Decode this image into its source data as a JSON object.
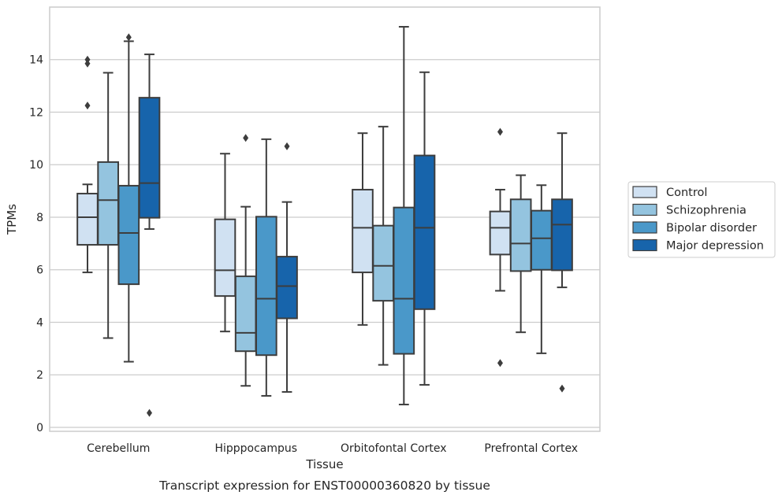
{
  "chart_data": {
    "type": "box",
    "caption": "Transcript expression for ENST00000360820 by tissue",
    "xlabel": "Tissue",
    "ylabel": "TPMs",
    "ylim": [
      -0.15,
      16
    ],
    "yticks": [
      0,
      2,
      4,
      6,
      8,
      10,
      12,
      14
    ],
    "grid": true,
    "legend_position": "right",
    "categories": [
      "Cerebellum",
      "Hipppocampus",
      "Orbitofontal Cortex",
      "Prefrontal Cortex"
    ],
    "series": [
      {
        "name": "Control",
        "color": "#d0e1f2",
        "boxes": [
          {
            "whislo": 5.9,
            "q1": 6.95,
            "med": 8.0,
            "q3": 8.9,
            "whishi": 9.25,
            "fliers": [
              12.25,
              13.85,
              14.0
            ]
          },
          {
            "whislo": 3.65,
            "q1": 5.0,
            "med": 5.98,
            "q3": 7.92,
            "whishi": 10.42,
            "fliers": []
          },
          {
            "whislo": 3.9,
            "q1": 5.9,
            "med": 7.6,
            "q3": 9.05,
            "whishi": 11.2,
            "fliers": []
          },
          {
            "whislo": 5.2,
            "q1": 6.58,
            "med": 7.6,
            "q3": 8.22,
            "whishi": 9.05,
            "fliers": [
              2.45,
              11.25
            ]
          }
        ]
      },
      {
        "name": "Schizophrenia",
        "color": "#94c4df",
        "boxes": [
          {
            "whislo": 3.4,
            "q1": 6.95,
            "med": 8.65,
            "q3": 10.1,
            "whishi": 13.5,
            "fliers": []
          },
          {
            "whislo": 1.58,
            "q1": 2.9,
            "med": 3.6,
            "q3": 5.75,
            "whishi": 8.4,
            "fliers": [
              11.02
            ]
          },
          {
            "whislo": 2.38,
            "q1": 4.82,
            "med": 6.15,
            "q3": 7.68,
            "whishi": 11.45,
            "fliers": []
          },
          {
            "whislo": 3.62,
            "q1": 5.95,
            "med": 7.0,
            "q3": 8.68,
            "whishi": 9.6,
            "fliers": []
          }
        ]
      },
      {
        "name": "Bipolar disorder",
        "color": "#4a98c9",
        "boxes": [
          {
            "whislo": 2.5,
            "q1": 5.45,
            "med": 7.4,
            "q3": 9.2,
            "whishi": 14.7,
            "fliers": [
              14.85
            ]
          },
          {
            "whislo": 1.2,
            "q1": 2.75,
            "med": 4.9,
            "q3": 8.02,
            "whishi": 10.97,
            "fliers": []
          },
          {
            "whislo": 0.87,
            "q1": 2.8,
            "med": 4.9,
            "q3": 8.37,
            "whishi": 15.25,
            "fliers": []
          },
          {
            "whislo": 2.82,
            "q1": 6.0,
            "med": 7.2,
            "q3": 8.25,
            "whishi": 9.22,
            "fliers": []
          }
        ]
      },
      {
        "name": "Major depression",
        "color": "#1764ab",
        "boxes": [
          {
            "whislo": 7.55,
            "q1": 7.98,
            "med": 9.3,
            "q3": 12.55,
            "whishi": 14.2,
            "fliers": [
              0.55
            ]
          },
          {
            "whislo": 1.35,
            "q1": 4.15,
            "med": 5.38,
            "q3": 6.5,
            "whishi": 8.58,
            "fliers": [
              10.7
            ]
          },
          {
            "whislo": 1.62,
            "q1": 4.5,
            "med": 7.6,
            "q3": 10.35,
            "whishi": 13.52,
            "fliers": []
          },
          {
            "whislo": 5.33,
            "q1": 5.98,
            "med": 7.72,
            "q3": 8.68,
            "whishi": 11.2,
            "fliers": [
              1.48
            ]
          }
        ]
      }
    ]
  }
}
